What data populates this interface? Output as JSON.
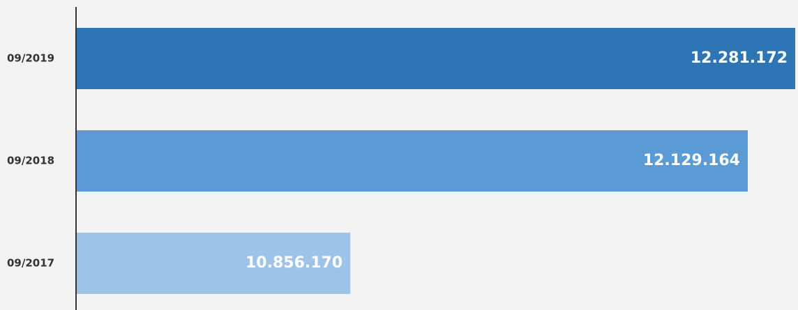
{
  "chart_data": {
    "type": "hbar",
    "categories": [
      "09/2019",
      "09/2018",
      "09/2017"
    ],
    "values": [
      12281172,
      12129164,
      10856170
    ],
    "value_labels": [
      "12.281.172",
      "12.129.164",
      "10.856.170"
    ],
    "colors": [
      "#2e75b6",
      "#5b9bd5",
      "#9dc3e6"
    ],
    "xlim": [
      9980000,
      12290000
    ]
  }
}
